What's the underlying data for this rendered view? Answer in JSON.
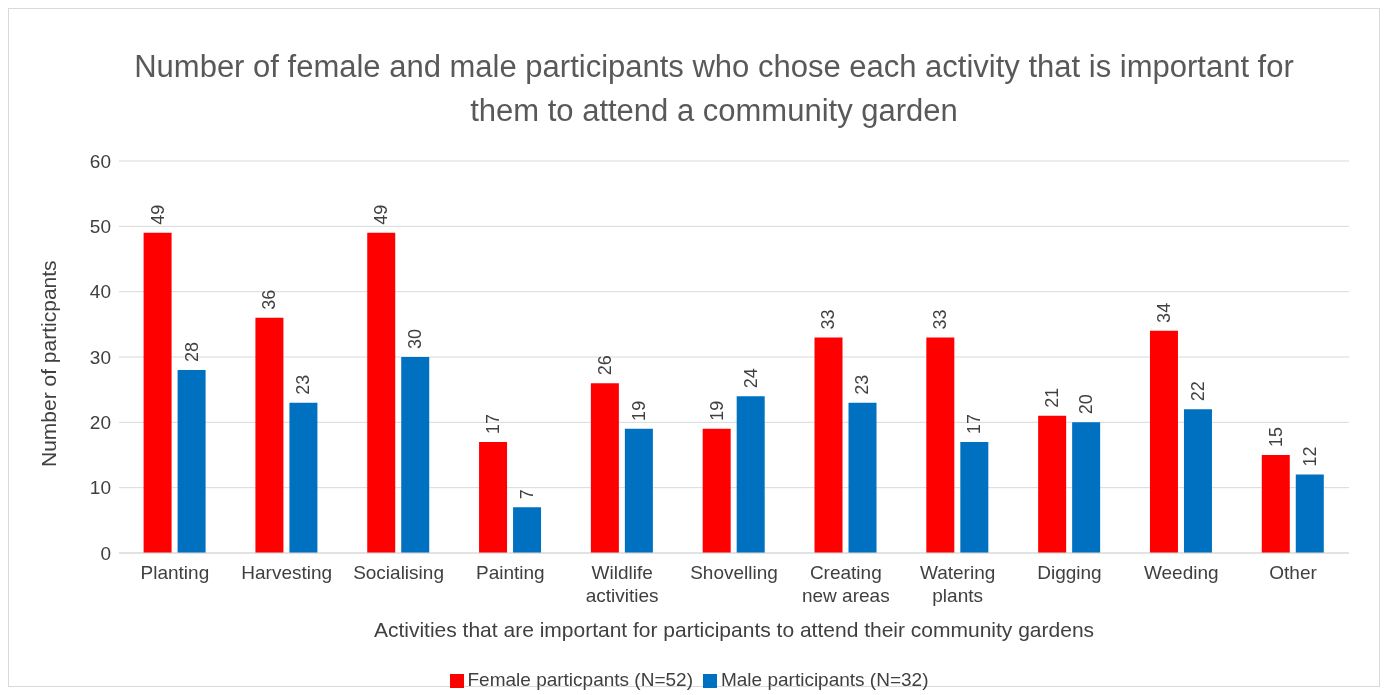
{
  "chart_data": {
    "type": "bar",
    "title": "Number of female and male participants who chose each activity that is important for them to attend a community garden",
    "xlabel": "Activities that are important for participants to attend their community gardens",
    "ylabel": "Number of particpants",
    "categories": [
      "Planting",
      "Harvesting",
      "Socialising",
      "Painting",
      "Wildlife activities",
      "Shovelling",
      "Creating new areas",
      "Watering plants",
      "Digging",
      "Weeding",
      "Other"
    ],
    "series": [
      {
        "name": "Female particpants (N=52)",
        "color": "#ff0000",
        "values": [
          49,
          36,
          49,
          17,
          26,
          19,
          33,
          33,
          21,
          34,
          15
        ]
      },
      {
        "name": "Male participants (N=32)",
        "color": "#0070c0",
        "values": [
          28,
          23,
          30,
          7,
          19,
          24,
          23,
          17,
          20,
          22,
          12
        ]
      }
    ],
    "ylim": [
      0,
      60
    ],
    "yticks": [
      0,
      10,
      20,
      30,
      40,
      50,
      60
    ],
    "grid": "y",
    "legend": "bottom",
    "data_labels": true
  }
}
